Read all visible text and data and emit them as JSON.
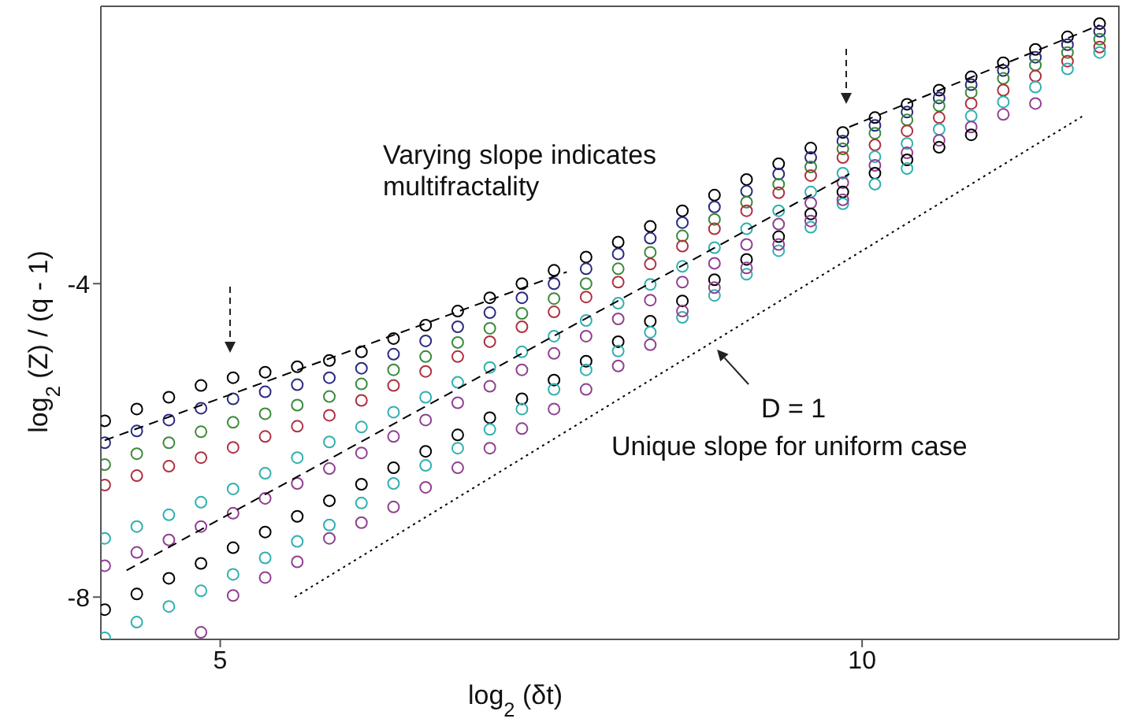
{
  "chart_data": {
    "type": "scatter",
    "xlabel": "log$_{2}$(δt)",
    "ylabel": "log$_{2}$(Z) / (q - 1)",
    "annotations": [
      "Varying slope indicates\nmultifractality",
      "D = 1",
      "Unique slope for uniform case"
    ],
    "xlim": [
      4.07,
      12.0
    ],
    "ylim": [
      -8.54,
      -0.46
    ],
    "xticks": [
      5,
      10
    ],
    "yticks": [
      -8,
      -4
    ],
    "grid": false,
    "legend": false,
    "marker": "circle",
    "x": [
      4.1,
      4.35,
      4.6,
      4.85,
      5.1,
      5.35,
      5.6,
      5.85,
      6.1,
      6.35,
      6.6,
      6.85,
      7.1,
      7.35,
      7.6,
      7.85,
      8.1,
      8.35,
      8.6,
      8.85,
      9.1,
      9.35,
      9.6,
      9.85,
      10.1,
      10.35,
      10.6,
      10.85,
      11.1,
      11.35,
      11.6,
      11.85
    ],
    "series": [
      {
        "color": "#000000",
        "values": [
          -5.75,
          -5.6,
          -5.45,
          -5.3,
          -5.2,
          -5.13,
          -5.06,
          -4.98,
          -4.87,
          -4.7,
          -4.53,
          -4.35,
          -4.18,
          -4.0,
          -3.83,
          -3.66,
          -3.47,
          -3.27,
          -3.07,
          -2.87,
          -2.67,
          -2.47,
          -2.27,
          -2.07,
          -1.88,
          -1.71,
          -1.53,
          -1.36,
          -1.18,
          -1.01,
          -0.85,
          -0.68
        ]
      },
      {
        "color": "#2a2a80",
        "values": [
          -6.03,
          -5.88,
          -5.74,
          -5.59,
          -5.47,
          -5.38,
          -5.29,
          -5.2,
          -5.08,
          -4.9,
          -4.73,
          -4.55,
          -4.37,
          -4.18,
          -4.0,
          -3.81,
          -3.62,
          -3.42,
          -3.22,
          -3.02,
          -2.82,
          -2.6,
          -2.39,
          -2.18,
          -1.98,
          -1.81,
          -1.63,
          -1.46,
          -1.28,
          -1.11,
          -0.95,
          -0.78
        ]
      },
      {
        "color": "#3a8a3a",
        "values": [
          -6.31,
          -6.17,
          -6.03,
          -5.89,
          -5.77,
          -5.66,
          -5.55,
          -5.44,
          -5.28,
          -5.1,
          -4.93,
          -4.75,
          -4.57,
          -4.38,
          -4.19,
          -4.0,
          -3.81,
          -3.6,
          -3.39,
          -3.18,
          -2.96,
          -2.73,
          -2.51,
          -2.28,
          -2.08,
          -1.91,
          -1.73,
          -1.56,
          -1.38,
          -1.21,
          -1.05,
          -0.88
        ]
      },
      {
        "color": "#b03040",
        "values": [
          -6.57,
          -6.45,
          -6.33,
          -6.22,
          -6.09,
          -5.95,
          -5.82,
          -5.68,
          -5.49,
          -5.3,
          -5.12,
          -4.93,
          -4.74,
          -4.55,
          -4.36,
          -4.17,
          -3.98,
          -3.75,
          -3.52,
          -3.3,
          -3.07,
          -2.84,
          -2.62,
          -2.39,
          -2.23,
          -2.05,
          -1.88,
          -1.7,
          -1.53,
          -1.35,
          -1.16,
          -0.98
        ]
      },
      {
        "color": "#30b0b0",
        "values": [
          -7.25,
          -7.1,
          -6.95,
          -6.79,
          -6.62,
          -6.42,
          -6.22,
          -6.02,
          -5.83,
          -5.64,
          -5.45,
          -5.26,
          -5.07,
          -4.87,
          -4.67,
          -4.47,
          -4.25,
          -4.01,
          -3.78,
          -3.54,
          -3.3,
          -3.07,
          -2.83,
          -2.59,
          -2.38,
          -2.21,
          -2.03,
          -1.86,
          -1.68,
          -1.49,
          -1.26,
          -1.05
        ]
      },
      {
        "color": "#904090",
        "values": [
          -7.6,
          -7.43,
          -7.27,
          -7.1,
          -6.93,
          -6.74,
          -6.55,
          -6.36,
          -6.16,
          -5.95,
          -5.74,
          -5.52,
          -5.31,
          -5.1,
          -4.89,
          -4.67,
          -4.45,
          -4.21,
          -3.98,
          -3.74,
          -3.5,
          -3.24,
          -2.97,
          -2.71,
          -2.49,
          -2.33,
          -2.17,
          -2.0,
          -1.84,
          -1.7,
          null,
          null
        ]
      },
      {
        "color": "#000000",
        "values": [
          -8.16,
          -7.96,
          -7.76,
          -7.57,
          -7.37,
          -7.17,
          -6.97,
          -6.77,
          -6.56,
          -6.35,
          -6.14,
          -5.93,
          -5.71,
          -5.47,
          -5.23,
          -4.99,
          -4.74,
          -4.48,
          -4.22,
          -3.95,
          -3.69,
          -3.4,
          -3.11,
          -2.83,
          -2.59,
          -2.42,
          -2.26,
          -2.1,
          null,
          null,
          null,
          null
        ]
      },
      {
        "color": "#30b0b0",
        "values": [
          -8.52,
          -8.32,
          -8.12,
          -7.92,
          -7.71,
          -7.5,
          -7.29,
          -7.08,
          -6.8,
          -6.55,
          -6.32,
          -6.1,
          -5.86,
          -5.6,
          -5.35,
          -5.1,
          -4.86,
          -4.62,
          -4.43,
          -4.15,
          -3.88,
          -3.58,
          -3.28,
          -2.98,
          -2.73,
          -2.53,
          null,
          null,
          null,
          null,
          null,
          null
        ]
      },
      {
        "color": "#904090",
        "values": [
          null,
          null,
          null,
          -8.45,
          -7.98,
          -7.75,
          -7.55,
          -7.25,
          -7.05,
          -6.85,
          -6.6,
          -6.35,
          -6.1,
          -5.85,
          -5.6,
          -5.35,
          -5.05,
          -4.78,
          -4.35,
          -4.05,
          -3.8,
          -3.5,
          -3.2,
          -2.93,
          null,
          null,
          null,
          null,
          null,
          null,
          null,
          null
        ]
      },
      {
        "type": "line",
        "line_style": "dashed",
        "marker": "none",
        "color": "#000000",
        "x": [
          4.1,
          7.7
        ],
        "values": [
          -6.0,
          -3.85
        ]
      },
      {
        "type": "line",
        "line_style": "dashed",
        "marker": "none",
        "color": "#000000",
        "x": [
          4.27,
          9.9
        ],
        "values": [
          -7.66,
          -2.6
        ]
      },
      {
        "type": "line",
        "line_style": "dashed",
        "marker": "none",
        "color": "#000000",
        "x": [
          9.9,
          11.85
        ],
        "values": [
          -2.0,
          -0.7
        ]
      },
      {
        "type": "line",
        "line_style": "dotted",
        "marker": "none",
        "color": "#000000",
        "x": [
          5.58,
          11.73
        ],
        "values": [
          -8.0,
          -1.85
        ]
      }
    ]
  }
}
